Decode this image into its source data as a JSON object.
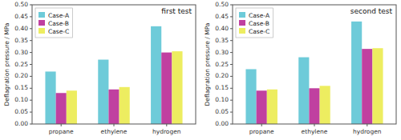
{
  "chart_data": [
    {
      "type": "bar",
      "title": "first test",
      "ylabel": "Deflagration pressure / MPa",
      "categories": [
        "propane",
        "ethylene",
        "hydrogen"
      ],
      "series": [
        {
          "name": "Case-A",
          "color": "#6ecbd9",
          "values": [
            0.22,
            0.27,
            0.41
          ]
        },
        {
          "name": "Case-B",
          "color": "#c040a0",
          "values": [
            0.13,
            0.145,
            0.3
          ]
        },
        {
          "name": "Case-C",
          "color": "#eded60",
          "values": [
            0.14,
            0.155,
            0.305
          ]
        }
      ],
      "ylim": [
        0.0,
        0.5
      ],
      "yticks": [
        {
          "value": 0.0,
          "label": "0.00"
        },
        {
          "value": 0.05,
          "label": "0.05"
        },
        {
          "value": 0.1,
          "label": "0.10"
        },
        {
          "value": 0.15,
          "label": "0.15"
        },
        {
          "value": 0.2,
          "label": "0.20"
        },
        {
          "value": 0.25,
          "label": "0.25"
        },
        {
          "value": 0.3,
          "label": "0.30"
        },
        {
          "value": 0.35,
          "label": "0.35"
        },
        {
          "value": 0.4,
          "label": "0.40"
        },
        {
          "value": 0.45,
          "label": "0.45"
        },
        {
          "value": 0.5,
          "label": "0.50"
        }
      ],
      "legend": "upper left",
      "grid": false
    },
    {
      "type": "bar",
      "title": "second test",
      "ylabel": "Deflagration pressure / MPa",
      "categories": [
        "propane",
        "ethylene",
        "hydrogen"
      ],
      "series": [
        {
          "name": "Case-A",
          "color": "#6ecbd9",
          "values": [
            0.23,
            0.28,
            0.43
          ]
        },
        {
          "name": "Case-B",
          "color": "#c040a0",
          "values": [
            0.14,
            0.15,
            0.315
          ]
        },
        {
          "name": "Case-C",
          "color": "#eded60",
          "values": [
            0.145,
            0.16,
            0.318
          ]
        }
      ],
      "ylim": [
        0.0,
        0.5
      ],
      "yticks": [
        {
          "value": 0.0,
          "label": "0.00"
        },
        {
          "value": 0.05,
          "label": "0.05"
        },
        {
          "value": 0.1,
          "label": "0.10"
        },
        {
          "value": 0.15,
          "label": "0.15"
        },
        {
          "value": 0.2,
          "label": "0.20"
        },
        {
          "value": 0.25,
          "label": "0.25"
        },
        {
          "value": 0.3,
          "label": "0.30"
        },
        {
          "value": 0.35,
          "label": "0.35"
        },
        {
          "value": 0.4,
          "label": "0.40"
        },
        {
          "value": 0.45,
          "label": "0.45"
        },
        {
          "value": 0.5,
          "label": "0.50"
        }
      ],
      "legend": "upper left",
      "grid": false
    }
  ]
}
